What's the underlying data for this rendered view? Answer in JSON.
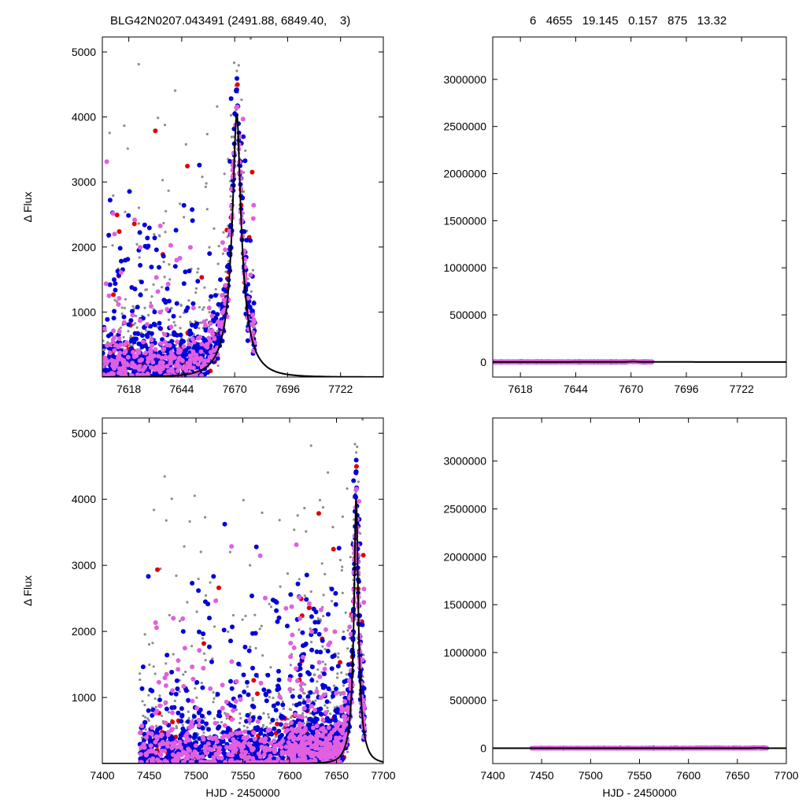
{
  "header": {
    "left_title": "BLG42N0207.043491 (2491.88, 6849.40,    3)",
    "right_title": "6   4655   19.145   0.157   875   13.32"
  },
  "colors": {
    "gray": "#8c8c8c",
    "red": "#e00000",
    "blue": "#0000d8",
    "magenta": "#e060e0",
    "model": "#000000"
  },
  "chart_data": [
    {
      "id": "top-left",
      "type": "scatter",
      "title": "",
      "xlabel": "",
      "ylabel": "Δ Flux",
      "xlim": [
        7605,
        7743
      ],
      "ylim": [
        0,
        5230
      ],
      "xticks": [
        7618,
        7644,
        7670,
        7696,
        7722
      ],
      "yticks": [
        1000,
        2000,
        3000,
        4000,
        5000
      ],
      "grid": false,
      "model": {
        "t0": 7671,
        "tE": 12,
        "u0": 0.157,
        "amp": 4050
      }
    },
    {
      "id": "top-right",
      "type": "scatter",
      "title": "",
      "xlabel": "",
      "ylabel": "",
      "xlim": [
        7605,
        7743
      ],
      "ylim": [
        -160000,
        3450000
      ],
      "xticks": [
        7618,
        7644,
        7670,
        7696,
        7722
      ],
      "yticks": [
        0,
        500000,
        1000000,
        1500000,
        2000000,
        2500000,
        3000000
      ],
      "grid": false,
      "model": {
        "t0": 7671,
        "tE": 12,
        "u0": 0.157,
        "amp": 4050
      }
    },
    {
      "id": "bottom-left",
      "type": "scatter",
      "title": "",
      "xlabel": "HJD - 2450000",
      "ylabel": "Δ Flux",
      "xlim": [
        7400,
        7700
      ],
      "ylim": [
        0,
        5230
      ],
      "xticks": [
        7400,
        7450,
        7500,
        7550,
        7600,
        7650,
        7700
      ],
      "yticks": [
        1000,
        2000,
        3000,
        4000,
        5000
      ],
      "grid": false,
      "model": {
        "t0": 7671,
        "tE": 12,
        "u0": 0.157,
        "amp": 4050
      }
    },
    {
      "id": "bottom-right",
      "type": "scatter",
      "title": "",
      "xlabel": "HJD - 2450000",
      "ylabel": "",
      "xlim": [
        7400,
        7700
      ],
      "ylim": [
        -160000,
        3450000
      ],
      "xticks": [
        7400,
        7450,
        7500,
        7550,
        7600,
        7650,
        7700
      ],
      "yticks": [
        0,
        500000,
        1000000,
        1500000,
        2000000,
        2500000,
        3000000
      ],
      "grid": false,
      "model": {
        "t0": 7671,
        "tE": 12,
        "u0": 0.157,
        "amp": 4050
      }
    }
  ],
  "observations": {
    "x_range": [
      7440,
      7680
    ],
    "seeds": {
      "gray": 11,
      "red": 23,
      "blue": 37,
      "magenta": 51
    },
    "counts": {
      "gray": 900,
      "red": 160,
      "blue": 1400,
      "magenta": 700
    }
  }
}
